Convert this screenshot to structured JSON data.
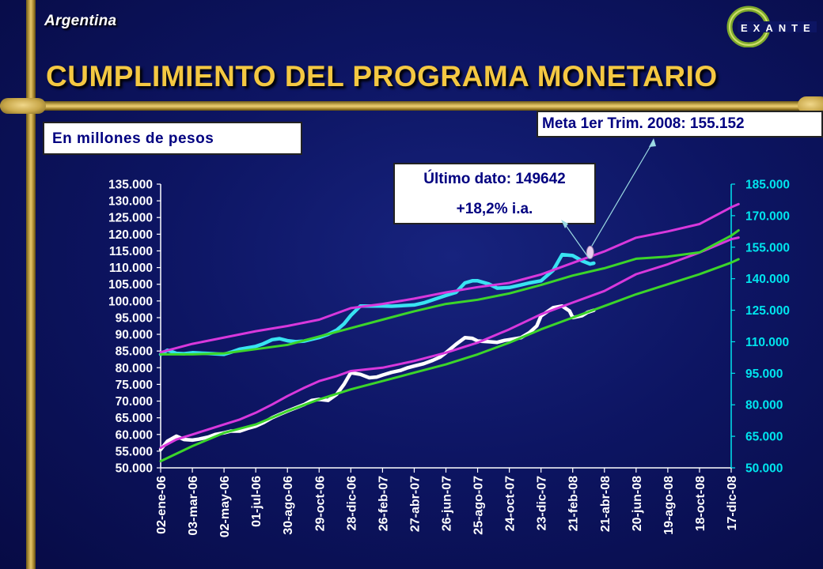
{
  "header": {
    "country": "Argentina",
    "title": "CUMPLIMIENTO DEL PROGRAMA MONETARIO",
    "logo_text": "EXANTE"
  },
  "units_label": "En millones de pesos",
  "annotations": {
    "target": "Meta 1er Trim. 2008: 155.152",
    "last_value": "Último dato: 149642",
    "yoy_change": "+18,2% i.a."
  },
  "colors": {
    "title": "#f4c842",
    "white_series": "#ffffff",
    "cyan_series": "#38e3f2",
    "magenta_series": "#d838dc",
    "green_series": "#3cd52a",
    "right_axis": "#00e5ee",
    "left_axis": "#ffffff"
  },
  "chart_data": {
    "type": "line",
    "title": "",
    "xlabel": "",
    "ylabel": "",
    "x_tick_labels": [
      "02-ene-06",
      "03-mar-06",
      "02-may-06",
      "01-jul-06",
      "30-ago-06",
      "29-oct-06",
      "28-dic-06",
      "26-feb-07",
      "27-abr-07",
      "26-jun-07",
      "25-ago-07",
      "24-oct-07",
      "23-dic-07",
      "21-feb-08",
      "21-abr-08",
      "20-jun-08",
      "19-ago-08",
      "18-oct-08",
      "17-dic-08"
    ],
    "y_left": {
      "min": 50000,
      "max": 135000,
      "ticks": [
        "50.000",
        "55.000",
        "60.000",
        "65.000",
        "70.000",
        "75.000",
        "80.000",
        "85.000",
        "90.000",
        "95.000",
        "100.000",
        "105.000",
        "110.000",
        "115.000",
        "120.000",
        "125.000",
        "130.000",
        "135.000"
      ]
    },
    "y_right": {
      "min": 50000,
      "max": 185000,
      "ticks": [
        "50.000",
        "65.000",
        "80.000",
        "95.000",
        "110.000",
        "125.000",
        "140.000",
        "155.000",
        "170.000",
        "185.000"
      ]
    },
    "grid": false,
    "legend": "none",
    "series": [
      {
        "axis": "left",
        "color": "#ffffff",
        "x": [
          "02-ene-06",
          "15-ene-06",
          "01-feb-06",
          "15-feb-06",
          "03-mar-06",
          "15-mar-06",
          "02-abr-06",
          "15-abr-06",
          "02-may-06",
          "15-may-06",
          "01-jun-06",
          "15-jun-06",
          "01-jul-06",
          "15-jul-06",
          "01-ago-06",
          "15-ago-06",
          "30-ago-06",
          "15-sep-06",
          "01-oct-06",
          "15-oct-06",
          "29-oct-06",
          "15-nov-06",
          "01-dic-06",
          "15-dic-06",
          "28-dic-06",
          "15-ene-07",
          "01-feb-07",
          "15-feb-07",
          "26-feb-07",
          "15-mar-07",
          "01-abr-07",
          "15-abr-07",
          "27-abr-07",
          "15-may-07",
          "01-jun-07",
          "15-jun-07",
          "26-jun-07",
          "15-jul-07",
          "01-ago-07",
          "15-ago-07",
          "25-ago-07",
          "15-sep-07",
          "01-oct-07",
          "15-oct-07",
          "24-oct-07",
          "15-nov-07",
          "01-dic-07",
          "15-dic-07",
          "23-dic-07",
          "15-ene-08",
          "01-feb-08",
          "15-feb-08",
          "21-feb-08",
          "10-mar-08",
          "20-mar-08",
          "01-abr-08"
        ],
        "y": [
          55500,
          58000,
          59500,
          58500,
          58300,
          58600,
          59200,
          60000,
          60500,
          61000,
          61000,
          61800,
          62500,
          63500,
          65000,
          66000,
          67000,
          68000,
          69000,
          70200,
          70500,
          70200,
          72000,
          75000,
          78500,
          78000,
          77000,
          77200,
          77800,
          78600,
          79200,
          80000,
          80500,
          81200,
          82200,
          83200,
          84500,
          87000,
          89000,
          88800,
          88000,
          87800,
          87600,
          88200,
          88400,
          89000,
          90500,
          92500,
          95500,
          98000,
          98500,
          97000,
          95000,
          95600,
          96600,
          97200
        ]
      },
      {
        "axis": "left",
        "color": "#d838dc",
        "x": [
          "02-ene-06",
          "01-feb-06",
          "03-mar-06",
          "02-abr-06",
          "02-may-06",
          "01-jun-06",
          "01-jul-06",
          "01-ago-06",
          "30-ago-06",
          "01-oct-06",
          "29-oct-06",
          "01-dic-06",
          "28-dic-06",
          "26-feb-07",
          "27-abr-07",
          "26-jun-07",
          "25-ago-07",
          "24-oct-07",
          "23-dic-07",
          "21-feb-08",
          "21-abr-08",
          "20-jun-08",
          "19-ago-08",
          "18-oct-08",
          "17-dic-08",
          "31-dic-08"
        ],
        "y": [
          56000,
          58500,
          60000,
          61500,
          63000,
          64500,
          66500,
          69000,
          71500,
          74000,
          76000,
          77500,
          79000,
          80000,
          82000,
          84500,
          87500,
          91500,
          96000,
          99500,
          103000,
          108000,
          111000,
          114500,
          118500,
          119000
        ]
      },
      {
        "axis": "left",
        "color": "#3cd52a",
        "x": [
          "02-ene-06",
          "03-mar-06",
          "02-may-06",
          "01-jul-06",
          "30-ago-06",
          "29-oct-06",
          "28-dic-06",
          "26-feb-07",
          "27-abr-07",
          "26-jun-07",
          "25-ago-07",
          "24-oct-07",
          "23-dic-07",
          "21-feb-08",
          "21-abr-08",
          "20-jun-08",
          "19-ago-08",
          "18-oct-08",
          "17-dic-08",
          "31-dic-08"
        ],
        "y": [
          52000,
          56500,
          60500,
          63000,
          67000,
          70500,
          73500,
          76000,
          78500,
          81000,
          84000,
          87500,
          91500,
          95000,
          98500,
          102000,
          105000,
          108000,
          111500,
          112500
        ]
      },
      {
        "axis": "right",
        "color": "#38e3f2",
        "x": [
          "02-ene-06",
          "15-ene-06",
          "01-feb-06",
          "15-feb-06",
          "03-mar-06",
          "02-abr-06",
          "02-may-06",
          "15-may-06",
          "01-jun-06",
          "01-jul-06",
          "15-jul-06",
          "01-ago-06",
          "15-ago-06",
          "30-ago-06",
          "15-sep-06",
          "01-oct-06",
          "29-oct-06",
          "15-nov-06",
          "01-dic-06",
          "15-dic-06",
          "28-dic-06",
          "15-ene-07",
          "26-feb-07",
          "15-mar-07",
          "27-abr-07",
          "15-may-07",
          "26-jun-07",
          "15-jul-07",
          "01-ago-07",
          "15-ago-07",
          "25-ago-07",
          "15-sep-07",
          "01-oct-07",
          "24-oct-07",
          "15-nov-07",
          "01-dic-07",
          "23-dic-07",
          "15-ene-08",
          "01-feb-08",
          "21-feb-08",
          "10-mar-08",
          "25-mar-08",
          "01-abr-08"
        ],
        "y": [
          104000,
          106000,
          104500,
          104300,
          104800,
          104400,
          104000,
          105000,
          106500,
          107800,
          109000,
          111000,
          111500,
          110500,
          110000,
          110300,
          112000,
          113500,
          115500,
          118500,
          122500,
          127000,
          127000,
          126900,
          127500,
          128500,
          132000,
          133500,
          138000,
          139000,
          139000,
          137500,
          135500,
          135800,
          137000,
          138000,
          139000,
          144000,
          151500,
          151000,
          148500,
          147000,
          147400
        ]
      },
      {
        "axis": "right",
        "color": "#d838dc",
        "x": [
          "02-ene-06",
          "03-mar-06",
          "02-may-06",
          "01-jul-06",
          "30-ago-06",
          "29-oct-06",
          "28-dic-06",
          "26-feb-07",
          "27-abr-07",
          "26-jun-07",
          "25-ago-07",
          "24-oct-07",
          "23-dic-07",
          "21-feb-08",
          "21-abr-08",
          "20-jun-08",
          "19-ago-08",
          "18-oct-08",
          "17-dic-08",
          "31-dic-08"
        ],
        "y": [
          105000,
          109000,
          112000,
          115000,
          117500,
          120500,
          126000,
          128000,
          130500,
          133500,
          136000,
          138000,
          142000,
          147500,
          153000,
          159500,
          162500,
          166000,
          174000,
          175500
        ]
      },
      {
        "axis": "right",
        "color": "#3cd52a",
        "x": [
          "02-ene-06",
          "03-mar-06",
          "02-may-06",
          "01-jul-06",
          "30-ago-06",
          "29-oct-06",
          "28-dic-06",
          "26-feb-07",
          "27-abr-07",
          "26-jun-07",
          "25-ago-07",
          "24-oct-07",
          "23-dic-07",
          "21-feb-08",
          "21-abr-08",
          "20-jun-08",
          "19-ago-08",
          "18-oct-08",
          "17-dic-08",
          "31-dic-08"
        ],
        "y": [
          104000,
          104000,
          104500,
          106500,
          108500,
          112500,
          116500,
          120500,
          124500,
          128000,
          130000,
          133000,
          137000,
          141500,
          145000,
          149500,
          150500,
          152500,
          160500,
          163000
        ]
      }
    ],
    "markers": [
      {
        "axis": "right",
        "x": "25-mar-08",
        "y": 152500,
        "label": "Meta 1er Trim. 2008: 155.152"
      }
    ]
  }
}
